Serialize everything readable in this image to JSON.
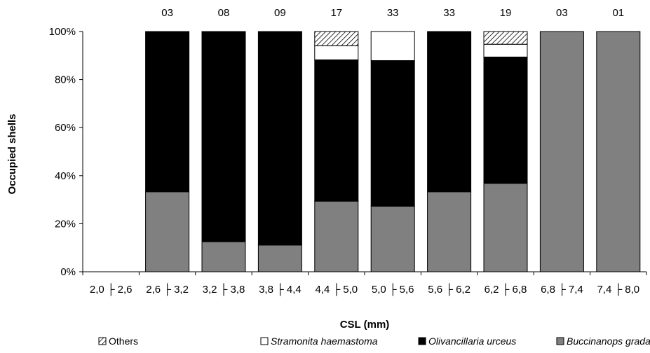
{
  "chart_data": {
    "type": "bar",
    "stacked": true,
    "percent": true,
    "title": "",
    "xlabel": "CSL (mm)",
    "ylabel": "Occupied shells",
    "ylim": [
      0,
      100
    ],
    "yticks": [
      "0%",
      "20%",
      "40%",
      "60%",
      "80%",
      "100%"
    ],
    "grid": false,
    "legend_position": "bottom",
    "categories": [
      "2,0 ├ 2,6",
      "2,6 ├ 3,2",
      "3,2 ├ 3,8",
      "3,8 ├ 4,4",
      "4,4 ├ 5,0",
      "5,0 ├ 5,6",
      "5,6 ├ 6,2",
      "6,2 ├ 6,8",
      "6,8 ├ 7,4",
      "7,4 ├ 8,0"
    ],
    "sample_sizes": [
      "",
      "03",
      "08",
      "09",
      "17",
      "33",
      "33",
      "19",
      "03",
      "01"
    ],
    "series": [
      {
        "name": "Buccinanops gradatum",
        "color": "#808080",
        "pattern": "solid",
        "values": [
          0,
          33.3,
          12.5,
          11.1,
          29.4,
          27.3,
          33.3,
          36.8,
          100,
          100
        ]
      },
      {
        "name": "Olivancillaria urceus",
        "color": "#000000",
        "pattern": "solid",
        "values": [
          0,
          66.7,
          87.5,
          88.9,
          58.8,
          60.6,
          66.7,
          52.6,
          0,
          0
        ]
      },
      {
        "name": "Stramonita haemastoma",
        "color": "#ffffff",
        "pattern": "solid",
        "values": [
          0,
          0,
          0,
          0,
          5.9,
          12.1,
          0,
          5.3,
          0,
          0
        ]
      },
      {
        "name": "Others",
        "color": "#ffffff",
        "pattern": "hatch",
        "values": [
          0,
          0,
          0,
          0,
          5.9,
          0,
          0,
          5.3,
          0,
          0
        ]
      }
    ],
    "legend_order": [
      "Others",
      "Stramonita haemastoma",
      "Olivancillaria urceus",
      "Buccinanops gradatum"
    ]
  }
}
